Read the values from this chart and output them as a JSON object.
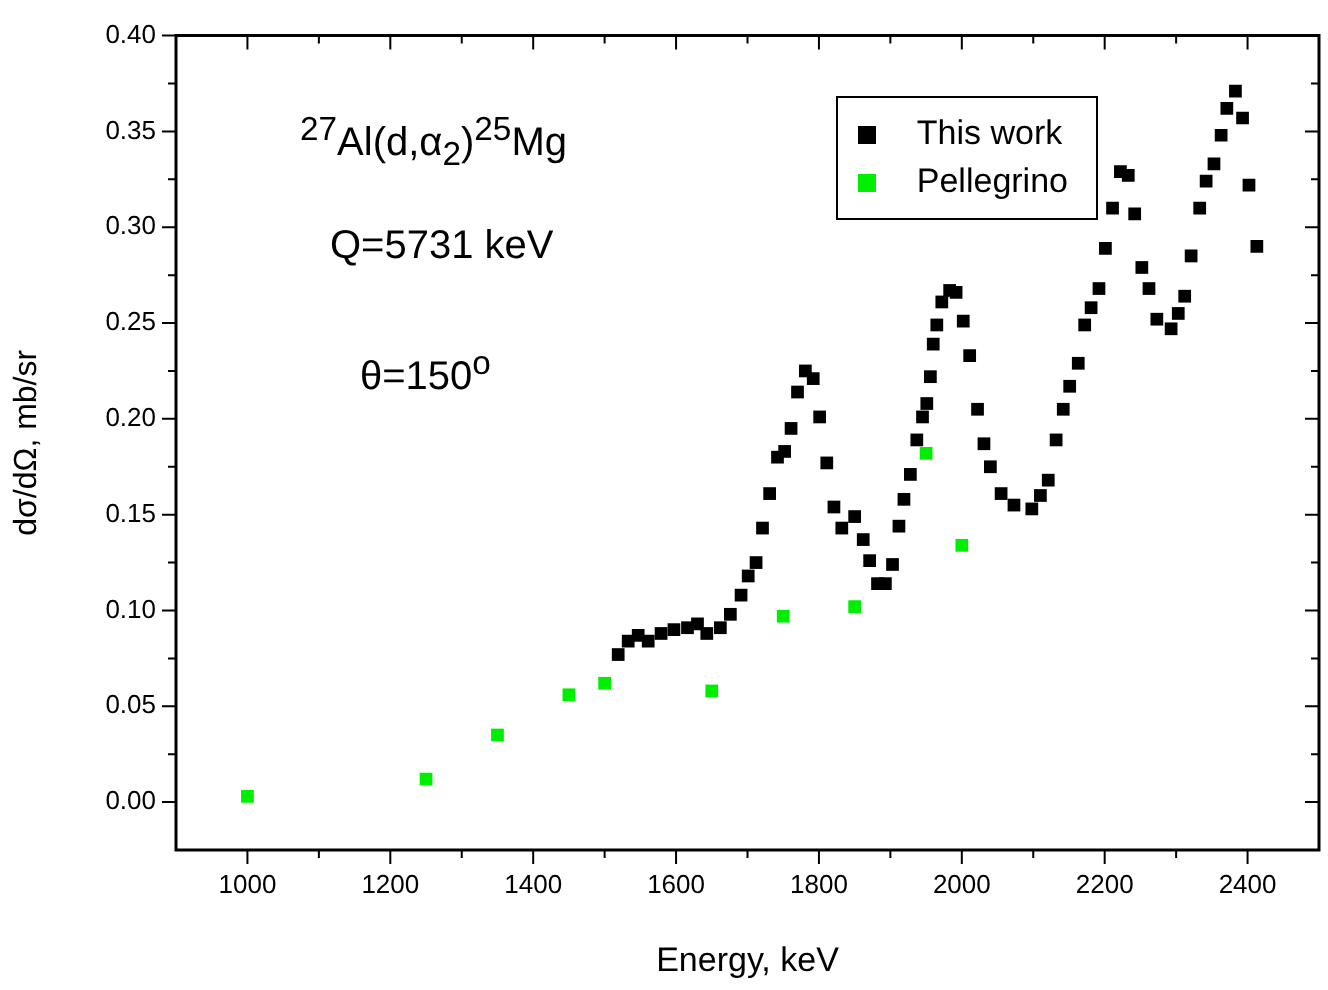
{
  "chart_data": {
    "type": "scatter",
    "xlabel": "Energy, keV",
    "ylabel": "dσ/dΩ, mb/sr",
    "annotations": [
      "$^{27}$Al(d,α$_{2}$)$^{25}$Mg",
      "Q=5731 keV",
      "θ=150$^{o}$"
    ],
    "xlim": [
      900,
      2500
    ],
    "xticks": [
      1000,
      {
        "value": 1100,
        "label": null
      },
      1200,
      {
        "value": 1300,
        "label": null
      },
      1400,
      {
        "value": 1500,
        "label": null
      },
      1600,
      {
        "value": 1700,
        "label": null
      },
      1800,
      {
        "value": 1900,
        "label": null
      },
      2000,
      {
        "value": 2100,
        "label": null
      },
      2200,
      {
        "value": 2300,
        "label": null
      },
      2400
    ],
    "ylim": [
      -0.025,
      0.4
    ],
    "yticks": [
      {
        "value": 0,
        "label": "0.00"
      },
      {
        "value": 0.025,
        "label": null
      },
      {
        "value": 0.05,
        "label": "0.05"
      },
      {
        "value": 0.075,
        "label": null
      },
      {
        "value": 0.1,
        "label": "0.10"
      },
      {
        "value": 0.125,
        "label": null
      },
      {
        "value": 0.15,
        "label": "0.15"
      },
      {
        "value": 0.175,
        "label": null
      },
      {
        "value": 0.2,
        "label": "0.20"
      },
      {
        "value": 0.225,
        "label": null
      },
      {
        "value": 0.25,
        "label": "0.25"
      },
      {
        "value": 0.275,
        "label": null
      },
      {
        "value": 0.3,
        "label": "0.30"
      },
      {
        "value": 0.325,
        "label": null
      },
      {
        "value": 0.35,
        "label": "0.35"
      },
      {
        "value": 0.375,
        "label": null
      },
      {
        "value": 0.4,
        "label": "0.40"
      }
    ],
    "grid": false,
    "legend": "top right",
    "marker": "square",
    "series": [
      {
        "name": "This work",
        "color": "#000000",
        "x": [
          1519,
          1533,
          1547,
          1561,
          1579,
          1597,
          1616,
          1630,
          1643,
          1662,
          1676,
          1691,
          1701,
          1712,
          1721,
          1731,
          1742,
          1752,
          1761,
          1770,
          1781,
          1792,
          1801,
          1811,
          1821,
          1832,
          1850,
          1862,
          1871,
          1882,
          1893,
          1903,
          1912,
          1919,
          1928,
          1937,
          1945,
          1951,
          1956,
          1960,
          1965,
          1972,
          1983,
          1992,
          2002,
          2011,
          2022,
          2031,
          2040,
          2055,
          2073,
          2098,
          2110,
          2121,
          2132,
          2142,
          2151,
          2163,
          2172,
          2181,
          2192,
          2201,
          2211,
          2222,
          2233,
          2242,
          2252,
          2262,
          2273,
          2293,
          2303,
          2312,
          2321,
          2333,
          2342,
          2353,
          2363,
          2371,
          2383,
          2393,
          2402,
          2413
        ],
        "values": [
          0.077,
          0.084,
          0.087,
          0.084,
          0.088,
          0.09,
          0.091,
          0.093,
          0.088,
          0.091,
          0.098,
          0.108,
          0.118,
          0.125,
          0.143,
          0.161,
          0.18,
          0.183,
          0.195,
          0.214,
          0.225,
          0.221,
          0.201,
          0.177,
          0.154,
          0.143,
          0.149,
          0.137,
          0.126,
          0.114,
          0.114,
          0.124,
          0.144,
          0.158,
          0.171,
          0.189,
          0.201,
          0.208,
          0.222,
          0.239,
          0.249,
          0.261,
          0.267,
          0.266,
          0.251,
          0.233,
          0.205,
          0.187,
          0.175,
          0.161,
          0.155,
          0.153,
          0.16,
          0.168,
          0.189,
          0.205,
          0.217,
          0.229,
          0.249,
          0.258,
          0.268,
          0.289,
          0.31,
          0.329,
          0.327,
          0.307,
          0.279,
          0.268,
          0.252,
          0.247,
          0.255,
          0.264,
          0.285,
          0.31,
          0.324,
          0.333,
          0.348,
          0.362,
          0.371,
          0.357,
          0.322,
          0.29
        ]
      },
      {
        "name": "Pellegrino",
        "color": "#00ee00",
        "x": [
          1000,
          1250,
          1350,
          1450,
          1500,
          1650,
          1750,
          1850,
          1950,
          2000
        ],
        "values": [
          0.003,
          0.012,
          0.035,
          0.056,
          0.062,
          0.058,
          0.097,
          0.102,
          0.182,
          0.134
        ]
      }
    ]
  }
}
